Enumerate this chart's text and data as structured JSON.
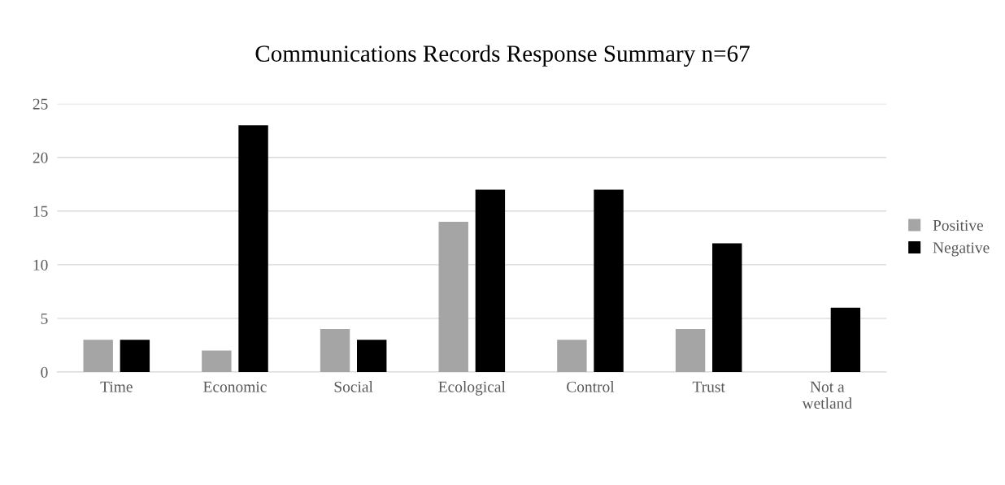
{
  "chart_data": {
    "type": "bar",
    "title": "Communications Records Response Summary n=67",
    "categories": [
      "Time",
      "Economic",
      "Social",
      "Ecological",
      "Control",
      "Trust",
      "Not a wetland"
    ],
    "series": [
      {
        "name": "Positive",
        "color": "#a5a5a5",
        "values": [
          3,
          2,
          4,
          14,
          3,
          4,
          0
        ]
      },
      {
        "name": "Negative",
        "color": "#000000",
        "values": [
          3,
          23,
          3,
          17,
          17,
          12,
          6
        ]
      }
    ],
    "ylim": [
      0,
      25
    ],
    "yticks": [
      0,
      5,
      10,
      15,
      20,
      25
    ],
    "grid": "y",
    "legend": "right"
  }
}
